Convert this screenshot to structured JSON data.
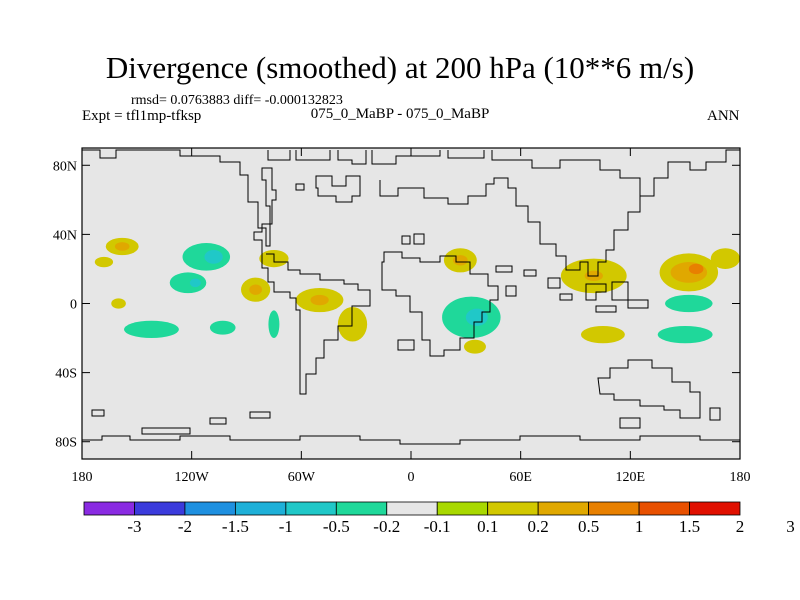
{
  "header": {
    "title": "Divergence (smoothed) at 200 hPa (10**6 m/s)",
    "stats": "rmsd= 0.0763883 diff= -0.000132823",
    "expt": "Expt = tfl1mp-tfksp",
    "case_id": "075_0_MaBP - 075_0_MaBP",
    "season": "ANN"
  },
  "chart_data": {
    "type": "heatmap",
    "title": "Divergence (smoothed) at 200 hPa (10**6 m/s)",
    "xlabel": "",
    "ylabel": "",
    "xlim": [
      -180,
      180
    ],
    "ylim": [
      -90,
      90
    ],
    "x_ticks": [
      {
        "value": -180,
        "label": "180"
      },
      {
        "value": -120,
        "label": "120W"
      },
      {
        "value": -60,
        "label": "60W"
      },
      {
        "value": 0,
        "label": "0"
      },
      {
        "value": 60,
        "label": "60E"
      },
      {
        "value": 120,
        "label": "120E"
      },
      {
        "value": 180,
        "label": "180"
      }
    ],
    "y_ticks": [
      {
        "value": 80,
        "label": "80N"
      },
      {
        "value": 40,
        "label": "40N"
      },
      {
        "value": 0,
        "label": "0"
      },
      {
        "value": -40,
        "label": "40S"
      },
      {
        "value": -80,
        "label": "80S"
      }
    ],
    "colorbar": {
      "boundaries": [
        "-3",
        "-2",
        "-1.5",
        "-1",
        "-0.5",
        "-0.2",
        "-0.1",
        "0.1",
        "0.2",
        "0.5",
        "1",
        "1.5",
        "2",
        "3"
      ],
      "colors": [
        "#8a2be2",
        "#3b3bdc",
        "#1e90e0",
        "#1eb0d8",
        "#20c8c8",
        "#1fd89a",
        "#e6e6e6",
        "#a8d800",
        "#d2c800",
        "#e0a800",
        "#e88000",
        "#e85000",
        "#e01000"
      ]
    },
    "blobs": [
      {
        "lon": -158,
        "lat": 33,
        "rlon": 9,
        "rlat": 5,
        "level": 0.2
      },
      {
        "lon": -158,
        "lat": 33,
        "rlon": 4,
        "rlat": 2.5,
        "level": 0.5
      },
      {
        "lon": -112,
        "lat": 27,
        "rlon": 13,
        "rlat": 8,
        "level": -0.2
      },
      {
        "lon": -108,
        "lat": 27,
        "rlon": 5,
        "rlat": 4,
        "level": -0.5
      },
      {
        "lon": -75,
        "lat": 26,
        "rlon": 8,
        "rlat": 5,
        "level": 0.2
      },
      {
        "lon": -122,
        "lat": 12,
        "rlon": 10,
        "rlat": 6,
        "level": -0.2
      },
      {
        "lon": -118,
        "lat": 12,
        "rlon": 3,
        "rlat": 2.5,
        "level": -0.5
      },
      {
        "lon": -85,
        "lat": 8,
        "rlon": 8,
        "rlat": 7,
        "level": 0.2
      },
      {
        "lon": -85,
        "lat": 8,
        "rlon": 3.5,
        "rlat": 3,
        "level": 0.5
      },
      {
        "lon": -142,
        "lat": -15,
        "rlon": 15,
        "rlat": 5,
        "level": -0.2
      },
      {
        "lon": -103,
        "lat": -14,
        "rlon": 7,
        "rlat": 4,
        "level": -0.2
      },
      {
        "lon": -50,
        "lat": 2,
        "rlon": 13,
        "rlat": 7,
        "level": 0.2
      },
      {
        "lon": -50,
        "lat": 2,
        "rlon": 5,
        "rlat": 3,
        "level": 0.5
      },
      {
        "lon": -32,
        "lat": -12,
        "rlon": 8,
        "rlat": 10,
        "level": 0.2
      },
      {
        "lon": -75,
        "lat": -12,
        "rlon": 3,
        "rlat": 8,
        "level": -0.2
      },
      {
        "lon": 27,
        "lat": 25,
        "rlon": 9,
        "rlat": 7,
        "level": 0.2
      },
      {
        "lon": 27,
        "lat": 25,
        "rlon": 4,
        "rlat": 3,
        "level": 0.5
      },
      {
        "lon": 33,
        "lat": -8,
        "rlon": 16,
        "rlat": 12,
        "level": -0.2
      },
      {
        "lon": 36,
        "lat": -8,
        "rlon": 6,
        "rlat": 5,
        "level": -0.5
      },
      {
        "lon": 35,
        "lat": -25,
        "rlon": 6,
        "rlat": 4,
        "level": 0.2
      },
      {
        "lon": 100,
        "lat": 16,
        "rlon": 18,
        "rlat": 10,
        "level": 0.2
      },
      {
        "lon": 100,
        "lat": 16,
        "rlon": 5,
        "rlat": 3,
        "level": 0.5
      },
      {
        "lon": 152,
        "lat": 18,
        "rlon": 16,
        "rlat": 11,
        "level": 0.2
      },
      {
        "lon": 152,
        "lat": 18,
        "rlon": 10,
        "rlat": 6,
        "level": 0.5
      },
      {
        "lon": 156,
        "lat": 20,
        "rlon": 4,
        "rlat": 3,
        "level": 1
      },
      {
        "lon": 172,
        "lat": 26,
        "rlon": 8,
        "rlat": 6,
        "level": 0.2
      },
      {
        "lon": 152,
        "lat": 0,
        "rlon": 13,
        "rlat": 5,
        "level": -0.2
      },
      {
        "lon": 105,
        "lat": -18,
        "rlon": 12,
        "rlat": 5,
        "level": 0.2
      },
      {
        "lon": 150,
        "lat": -18,
        "rlon": 15,
        "rlat": 5,
        "level": -0.2
      },
      {
        "lon": -168,
        "lat": 24,
        "rlon": 5,
        "rlat": 3,
        "level": 0.2
      },
      {
        "lon": -160,
        "lat": 0,
        "rlon": 4,
        "rlat": 3,
        "level": 0.2
      }
    ]
  }
}
